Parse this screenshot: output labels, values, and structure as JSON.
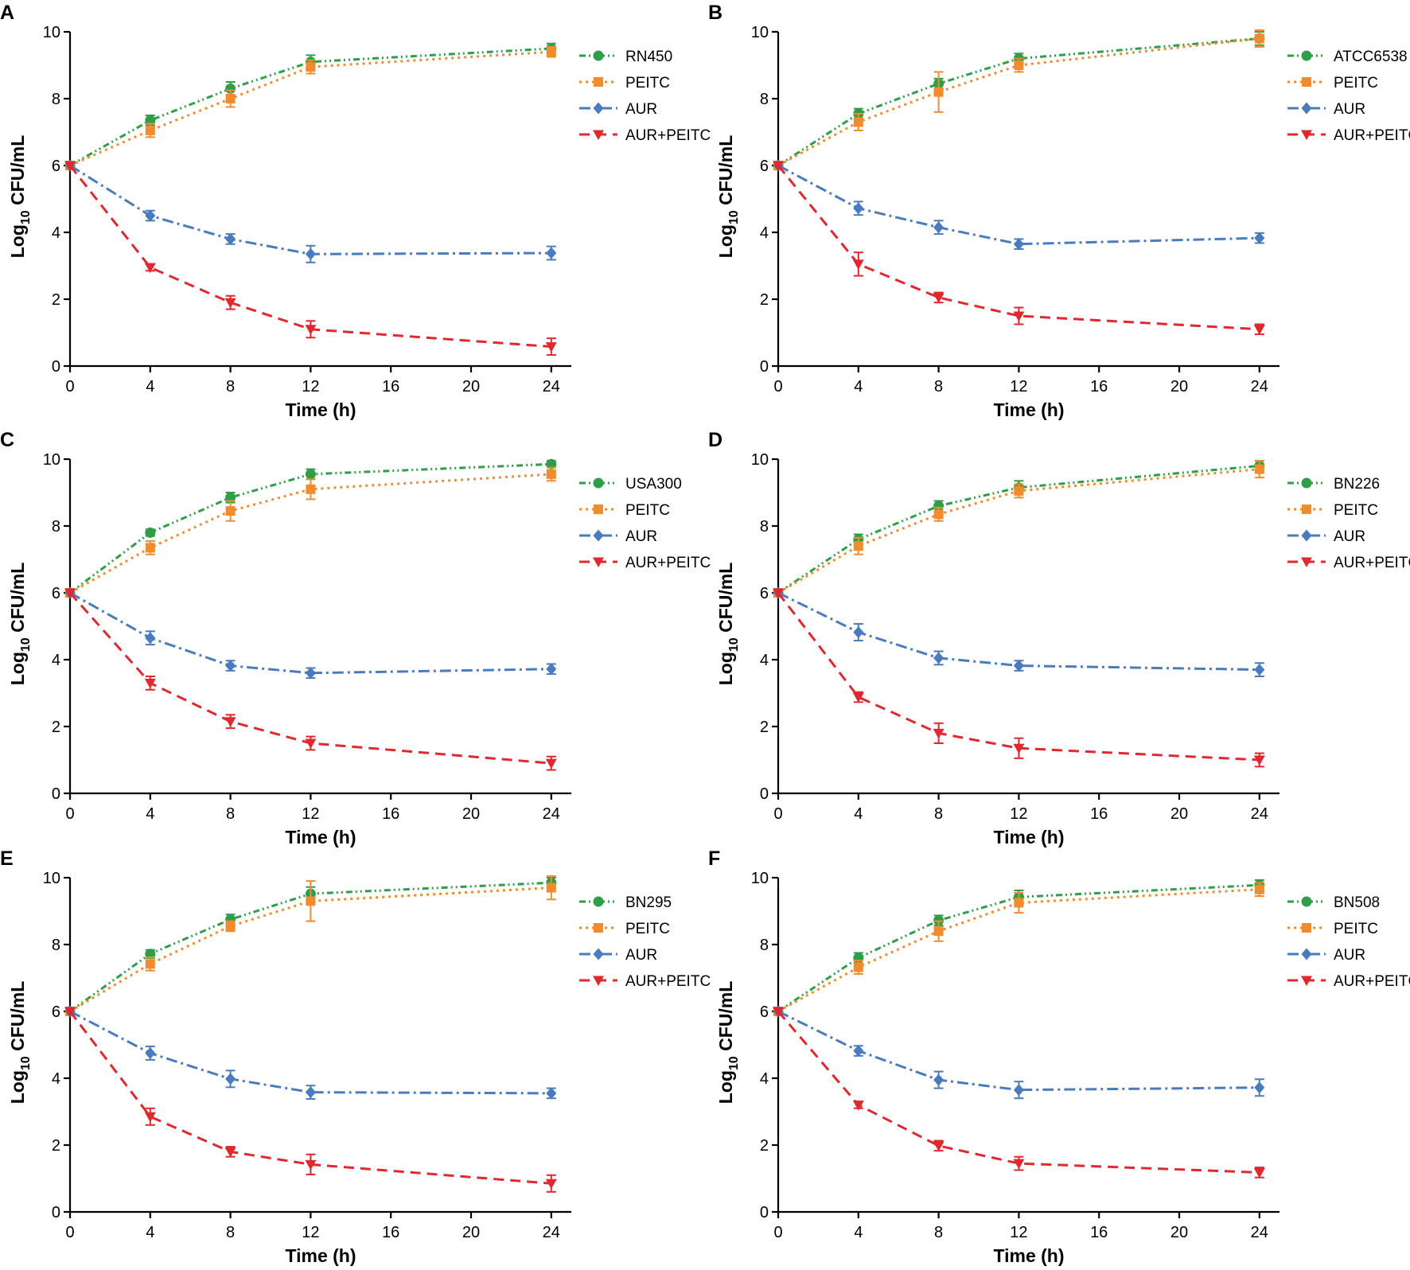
{
  "chart_data": [
    {
      "type": "line",
      "panel": "A",
      "x": [
        0,
        4,
        8,
        12,
        24
      ],
      "xticks": [
        0,
        4,
        8,
        12,
        16,
        20,
        24
      ],
      "yticks": [
        0,
        2,
        4,
        6,
        8,
        10
      ],
      "xlim": [
        0,
        25
      ],
      "ylim": [
        0,
        10
      ],
      "xlabel": "Time (h)",
      "ylabel_main": "Log",
      "ylabel_sub": "10",
      "ylabel_rest": " CFU/mL",
      "series": [
        {
          "name": "RN450",
          "key": "ctrl",
          "color": "#2e9e48",
          "values": [
            6.0,
            7.35,
            8.3,
            9.1,
            9.5
          ],
          "err": [
            0,
            0.15,
            0.2,
            0.2,
            0.15
          ]
        },
        {
          "name": "PEITC",
          "key": "peitc",
          "color": "#f08c2e",
          "values": [
            6.0,
            7.05,
            8.0,
            8.95,
            9.4
          ],
          "err": [
            0,
            0.2,
            0.25,
            0.2,
            0.15
          ]
        },
        {
          "name": "AUR",
          "key": "aur",
          "color": "#4a7bbf",
          "values": [
            6.0,
            4.5,
            3.8,
            3.35,
            3.38
          ],
          "err": [
            0,
            0.15,
            0.15,
            0.25,
            0.2
          ]
        },
        {
          "name": "AUR+PEITC",
          "key": "combo",
          "color": "#e0282e",
          "values": [
            6.0,
            2.95,
            1.9,
            1.1,
            0.58
          ],
          "err": [
            0,
            0.1,
            0.2,
            0.25,
            0.25
          ]
        }
      ]
    },
    {
      "type": "line",
      "panel": "B",
      "x": [
        0,
        4,
        8,
        12,
        24
      ],
      "xticks": [
        0,
        4,
        8,
        12,
        16,
        20,
        24
      ],
      "yticks": [
        0,
        2,
        4,
        6,
        8,
        10
      ],
      "xlim": [
        0,
        25
      ],
      "ylim": [
        0,
        10
      ],
      "xlabel": "Time (h)",
      "ylabel_main": "Log",
      "ylabel_sub": "10",
      "ylabel_rest": " CFU/mL",
      "series": [
        {
          "name": "ATCC6538",
          "key": "ctrl",
          "color": "#2e9e48",
          "values": [
            6.0,
            7.55,
            8.45,
            9.2,
            9.8
          ],
          "err": [
            0,
            0.15,
            0.15,
            0.15,
            0.2
          ]
        },
        {
          "name": "PEITC",
          "key": "peitc",
          "color": "#f08c2e",
          "values": [
            6.0,
            7.3,
            8.2,
            9.0,
            9.8
          ],
          "err": [
            0,
            0.25,
            0.6,
            0.2,
            0.25
          ]
        },
        {
          "name": "AUR",
          "key": "aur",
          "color": "#4a7bbf",
          "values": [
            6.0,
            4.72,
            4.15,
            3.65,
            3.83
          ],
          "err": [
            0,
            0.2,
            0.2,
            0.15,
            0.15
          ]
        },
        {
          "name": "AUR+PEITC",
          "key": "combo",
          "color": "#e0282e",
          "values": [
            6.0,
            3.05,
            2.05,
            1.5,
            1.1
          ],
          "err": [
            0,
            0.35,
            0.15,
            0.25,
            0.15
          ]
        }
      ]
    },
    {
      "type": "line",
      "panel": "C",
      "x": [
        0,
        4,
        8,
        12,
        24
      ],
      "xticks": [
        0,
        4,
        8,
        12,
        16,
        20,
        24
      ],
      "yticks": [
        0,
        2,
        4,
        6,
        8,
        10
      ],
      "xlim": [
        0,
        25
      ],
      "ylim": [
        0,
        10
      ],
      "xlabel": "Time (h)",
      "ylabel_main": "Log",
      "ylabel_sub": "10",
      "ylabel_rest": " CFU/mL",
      "series": [
        {
          "name": "USA300",
          "key": "ctrl",
          "color": "#2e9e48",
          "values": [
            6.0,
            7.8,
            8.85,
            9.55,
            9.85
          ],
          "err": [
            0,
            0.1,
            0.15,
            0.15,
            0.1
          ]
        },
        {
          "name": "PEITC",
          "key": "peitc",
          "color": "#f08c2e",
          "values": [
            6.0,
            7.35,
            8.45,
            9.1,
            9.55
          ],
          "err": [
            0,
            0.2,
            0.3,
            0.3,
            0.2
          ]
        },
        {
          "name": "AUR",
          "key": "aur",
          "color": "#4a7bbf",
          "values": [
            6.0,
            4.65,
            3.82,
            3.6,
            3.72
          ],
          "err": [
            0,
            0.2,
            0.15,
            0.15,
            0.15
          ]
        },
        {
          "name": "AUR+PEITC",
          "key": "combo",
          "color": "#e0282e",
          "values": [
            6.0,
            3.3,
            2.15,
            1.5,
            0.9
          ],
          "err": [
            0,
            0.2,
            0.2,
            0.2,
            0.2
          ]
        }
      ]
    },
    {
      "type": "line",
      "panel": "D",
      "x": [
        0,
        4,
        8,
        12,
        24
      ],
      "xticks": [
        0,
        4,
        8,
        12,
        16,
        20,
        24
      ],
      "yticks": [
        0,
        2,
        4,
        6,
        8,
        10
      ],
      "xlim": [
        0,
        25
      ],
      "ylim": [
        0,
        10
      ],
      "xlabel": "Time (h)",
      "ylabel_main": "Log",
      "ylabel_sub": "10",
      "ylabel_rest": " CFU/mL",
      "series": [
        {
          "name": "BN226",
          "key": "ctrl",
          "color": "#2e9e48",
          "values": [
            6.0,
            7.6,
            8.6,
            9.15,
            9.8
          ],
          "err": [
            0,
            0.15,
            0.15,
            0.2,
            0.15
          ]
        },
        {
          "name": "PEITC",
          "key": "peitc",
          "color": "#f08c2e",
          "values": [
            6.0,
            7.4,
            8.35,
            9.05,
            9.7
          ],
          "err": [
            0,
            0.25,
            0.2,
            0.2,
            0.25
          ]
        },
        {
          "name": "AUR",
          "key": "aur",
          "color": "#4a7bbf",
          "values": [
            6.0,
            4.82,
            4.05,
            3.82,
            3.7
          ],
          "err": [
            0,
            0.25,
            0.2,
            0.15,
            0.2
          ]
        },
        {
          "name": "AUR+PEITC",
          "key": "combo",
          "color": "#e0282e",
          "values": [
            6.0,
            2.88,
            1.8,
            1.35,
            1.0
          ],
          "err": [
            0,
            0.15,
            0.3,
            0.3,
            0.2
          ]
        }
      ]
    },
    {
      "type": "line",
      "panel": "E",
      "x": [
        0,
        4,
        8,
        12,
        24
      ],
      "xticks": [
        0,
        4,
        8,
        12,
        16,
        20,
        24
      ],
      "yticks": [
        0,
        2,
        4,
        6,
        8,
        10
      ],
      "xlim": [
        0,
        25
      ],
      "ylim": [
        0,
        10
      ],
      "xlabel": "Time (h)",
      "ylabel_main": "Log",
      "ylabel_sub": "10",
      "ylabel_rest": " CFU/mL",
      "series": [
        {
          "name": "BN295",
          "key": "ctrl",
          "color": "#2e9e48",
          "values": [
            6.0,
            7.72,
            8.75,
            9.52,
            9.85
          ],
          "err": [
            0,
            0.12,
            0.15,
            0.2,
            0.15
          ]
        },
        {
          "name": "PEITC",
          "key": "peitc",
          "color": "#f08c2e",
          "values": [
            6.0,
            7.42,
            8.55,
            9.3,
            9.7
          ],
          "err": [
            0,
            0.2,
            0.15,
            0.6,
            0.35
          ]
        },
        {
          "name": "AUR",
          "key": "aur",
          "color": "#4a7bbf",
          "values": [
            6.0,
            4.75,
            3.98,
            3.58,
            3.55
          ],
          "err": [
            0,
            0.2,
            0.25,
            0.2,
            0.15
          ]
        },
        {
          "name": "AUR+PEITC",
          "key": "combo",
          "color": "#e0282e",
          "values": [
            6.0,
            2.85,
            1.8,
            1.42,
            0.85
          ],
          "err": [
            0,
            0.25,
            0.15,
            0.3,
            0.25
          ]
        }
      ]
    },
    {
      "type": "line",
      "panel": "F",
      "x": [
        0,
        4,
        8,
        12,
        24
      ],
      "xticks": [
        0,
        4,
        8,
        12,
        16,
        20,
        24
      ],
      "yticks": [
        0,
        2,
        4,
        6,
        8,
        10
      ],
      "xlim": [
        0,
        25
      ],
      "ylim": [
        0,
        10
      ],
      "xlabel": "Time (h)",
      "ylabel_main": "Log",
      "ylabel_sub": "10",
      "ylabel_rest": " CFU/mL",
      "series": [
        {
          "name": "BN508",
          "key": "ctrl",
          "color": "#2e9e48",
          "values": [
            6.0,
            7.6,
            8.72,
            9.42,
            9.78
          ],
          "err": [
            0,
            0.15,
            0.15,
            0.2,
            0.15
          ]
        },
        {
          "name": "PEITC",
          "key": "peitc",
          "color": "#f08c2e",
          "values": [
            6.0,
            7.32,
            8.4,
            9.25,
            9.65
          ],
          "err": [
            0,
            0.2,
            0.3,
            0.3,
            0.2
          ]
        },
        {
          "name": "AUR",
          "key": "aur",
          "color": "#4a7bbf",
          "values": [
            6.0,
            4.82,
            3.95,
            3.65,
            3.72
          ],
          "err": [
            0,
            0.15,
            0.25,
            0.25,
            0.25
          ]
        },
        {
          "name": "AUR+PEITC",
          "key": "combo",
          "color": "#e0282e",
          "values": [
            6.0,
            3.2,
            1.98,
            1.45,
            1.18
          ],
          "err": [
            0,
            0.1,
            0.15,
            0.2,
            0.15
          ]
        }
      ]
    }
  ]
}
